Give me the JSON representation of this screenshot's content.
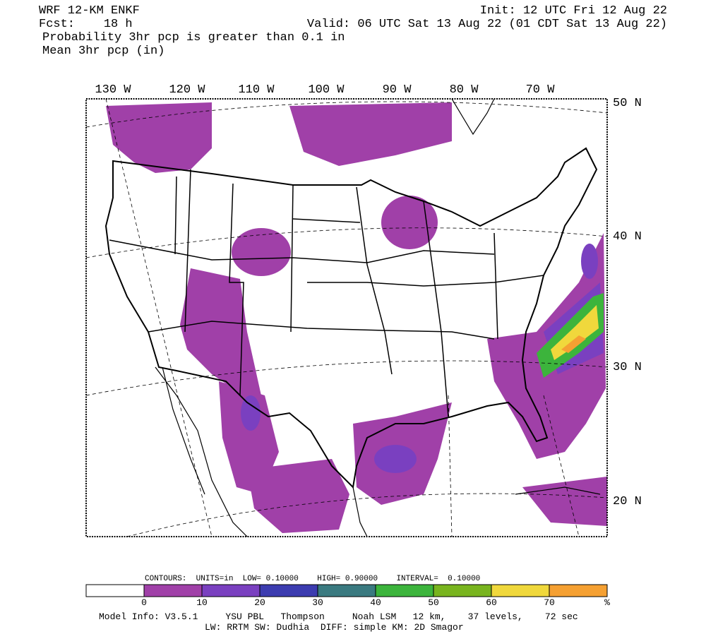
{
  "header": {
    "model": "WRF 12-KM ENKF",
    "init": "Init: 12 UTC Fri 12 Aug 22",
    "fcst": "Fcst:    18 h",
    "valid": "Valid: 06 UTC Sat 13 Aug 22 (01 CDT Sat 13 Aug 22)",
    "line3": "Probability 3hr pcp is greater than 0.1 in",
    "line4": "Mean 3hr pcp (in)"
  },
  "map": {
    "lon_labels": [
      "130 W",
      "120 W",
      "110 W",
      "100 W",
      "90 W",
      "80 W",
      "70 W"
    ],
    "lat_labels": [
      "50 N",
      "40 N",
      "30 N",
      "20 N"
    ]
  },
  "contours": "CONTOURS:  UNITS=in  LOW= 0.10000    HIGH= 0.90000    INTERVAL=  0.10000",
  "colorbar": {
    "colors": [
      "#ffffff",
      "#a040a8",
      "#7a40c0",
      "#3c3cb0",
      "#3a7a80",
      "#3cb43c",
      "#78b41e",
      "#f0d83c",
      "#f5a032"
    ],
    "labels": [
      "0",
      "10",
      "20",
      "30",
      "40",
      "50",
      "60",
      "70",
      "%"
    ]
  },
  "footer": {
    "line1": "Model Info: V3.5.1     YSU PBL   Thompson     Noah LSM   12 km,    37 levels,    72 sec",
    "line2": "LW: RRTM SW: Dudhia  DIFF: simple KM: 2D Smagor"
  }
}
